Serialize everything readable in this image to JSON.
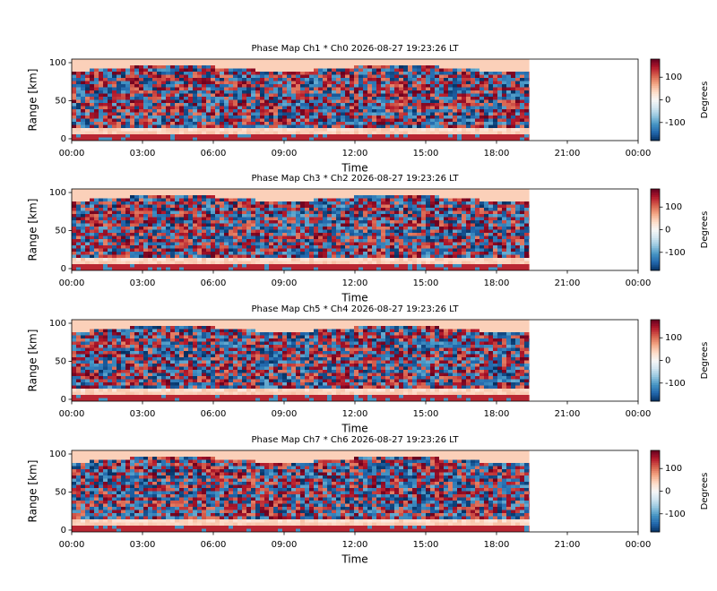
{
  "chart_data": [
    {
      "type": "heatmap",
      "title": "Phase Map Ch1 * Ch0 2026-08-27 19:23:26 LT",
      "xlabel": "Time",
      "ylabel": "Range [km]",
      "xlim": [
        0,
        24
      ],
      "xticks": [
        {
          "value": 0,
          "label": "00:00"
        },
        {
          "value": 3,
          "label": "03:00"
        },
        {
          "value": 6,
          "label": "06:00"
        },
        {
          "value": 9,
          "label": "09:00"
        },
        {
          "value": 12,
          "label": "12:00"
        },
        {
          "value": 15,
          "label": "15:00"
        },
        {
          "value": 18,
          "label": "18:00"
        },
        {
          "value": 21,
          "label": "21:00"
        },
        {
          "value": 24,
          "label": "00:00"
        }
      ],
      "ylim": [
        -2.4,
        104.7
      ],
      "yticks": [
        0,
        50,
        100
      ],
      "colormap": "RdBu_r",
      "colorbar": {
        "label": "Degrees",
        "clim": [
          -180,
          180
        ],
        "ticks": [
          -100,
          0,
          100
        ]
      }
    },
    {
      "type": "heatmap",
      "title": "Phase Map Ch3 * Ch2 2026-08-27 19:23:26 LT",
      "xlabel": "Time",
      "ylabel": "Range [km]",
      "xlim": [
        0,
        24
      ],
      "xticks": [
        {
          "value": 0,
          "label": "00:00"
        },
        {
          "value": 3,
          "label": "03:00"
        },
        {
          "value": 6,
          "label": "06:00"
        },
        {
          "value": 9,
          "label": "09:00"
        },
        {
          "value": 12,
          "label": "12:00"
        },
        {
          "value": 15,
          "label": "15:00"
        },
        {
          "value": 18,
          "label": "18:00"
        },
        {
          "value": 21,
          "label": "21:00"
        },
        {
          "value": 24,
          "label": "00:00"
        }
      ],
      "ylim": [
        -2.4,
        104.7
      ],
      "yticks": [
        0,
        50,
        100
      ],
      "colormap": "RdBu_r",
      "colorbar": {
        "label": "Degrees",
        "clim": [
          -180,
          180
        ],
        "ticks": [
          -100,
          0,
          100
        ]
      }
    },
    {
      "type": "heatmap",
      "title": "Phase Map Ch5 * Ch4 2026-08-27 19:23:26 LT",
      "xlabel": "Time",
      "ylabel": "Range [km]",
      "xlim": [
        0,
        24
      ],
      "xticks": [
        {
          "value": 0,
          "label": "00:00"
        },
        {
          "value": 3,
          "label": "03:00"
        },
        {
          "value": 6,
          "label": "06:00"
        },
        {
          "value": 9,
          "label": "09:00"
        },
        {
          "value": 12,
          "label": "12:00"
        },
        {
          "value": 15,
          "label": "15:00"
        },
        {
          "value": 18,
          "label": "18:00"
        },
        {
          "value": 21,
          "label": "21:00"
        },
        {
          "value": 24,
          "label": "00:00"
        }
      ],
      "ylim": [
        -2.4,
        104.7
      ],
      "yticks": [
        0,
        50,
        100
      ],
      "colormap": "RdBu_r",
      "colorbar": {
        "label": "Degrees",
        "clim": [
          -180,
          180
        ],
        "ticks": [
          -100,
          0,
          100
        ]
      }
    },
    {
      "type": "heatmap",
      "title": "Phase Map Ch7 * Ch6 2026-08-27 19:23:26 LT",
      "xlabel": "Time",
      "ylabel": "Range [km]",
      "xlim": [
        0,
        24
      ],
      "xticks": [
        {
          "value": 0,
          "label": "00:00"
        },
        {
          "value": 3,
          "label": "03:00"
        },
        {
          "value": 6,
          "label": "06:00"
        },
        {
          "value": 9,
          "label": "09:00"
        },
        {
          "value": 12,
          "label": "12:00"
        },
        {
          "value": 15,
          "label": "15:00"
        },
        {
          "value": 18,
          "label": "18:00"
        },
        {
          "value": 21,
          "label": "21:00"
        },
        {
          "value": 24,
          "label": "00:00"
        }
      ],
      "ylim": [
        -2.4,
        104.7
      ],
      "yticks": [
        0,
        50,
        100
      ],
      "colormap": "RdBu_r",
      "colorbar": {
        "label": "Degrees",
        "clim": [
          -180,
          180
        ],
        "ticks": [
          -100,
          0,
          100
        ]
      }
    }
  ]
}
